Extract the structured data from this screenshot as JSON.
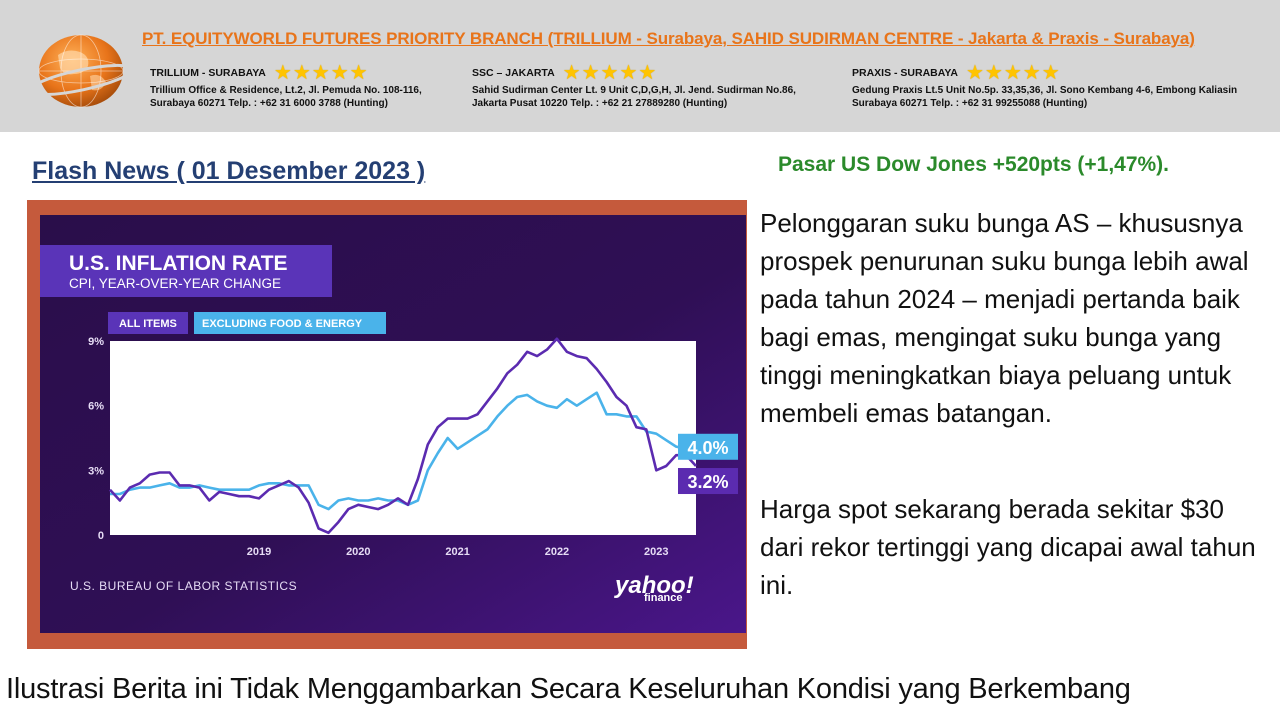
{
  "header": {
    "company": "PT. EQUITYWORLD FUTURES PRIORITY BRANCH  (TRILLIUM - Surabaya, SAHID SUDIRMAN CENTRE - Jakarta &  Praxis - Surabaya)",
    "branches": [
      {
        "name": "TRILLIUM - SURABAYA",
        "stars": "★★★★★",
        "address_line1": "Trillium Office & Residence, Lt.2, Jl. Pemuda No. 108-116,",
        "address_line2": "Surabaya 60271  Telp.   : +62 31 6000 3788 (Hunting)"
      },
      {
        "name": "SSC – JAKARTA",
        "stars": "★★★★★",
        "address_line1": "Sahid Sudirman Center Lt. 9 Unit C,D,G,H, Jl. Jend. Sudirman No.86,",
        "address_line2": "Jakarta Pusat 10220  Telp.   : +62 21 27889280 (Hunting)"
      },
      {
        "name": "PRAXIS - SURABAYA",
        "stars": "★★★★★",
        "address_line1": "Gedung Praxis Lt.5 Unit No.5p. 33,35,36, Jl. Sono Kembang 4-6, Embong Kaliasin",
        "address_line2": "Surabaya 60271  Telp.   : +62 31 99255088 (Hunting)"
      }
    ],
    "star_color": "#ffc400",
    "company_color": "#e8741a"
  },
  "flash_title": "Flash News  ( 01 Desember 2023 )",
  "market_headline": "Pasar US Dow Jones +520pts (+1,47%).",
  "paragraphs": [
    "Pelonggaran suku bunga AS – khususnya prospek penurunan suku bunga lebih awal pada tahun 2024 – menjadi pertanda baik bagi emas, mengingat suku bunga yang tinggi meningkatkan biaya peluang untuk membeli emas batangan.",
    "Harga spot sekarang berada sekitar $30 dari rekor tertinggi yang dicapai awal tahun ini."
  ],
  "footer_text": "Ilustrasi Berita ini Tidak Menggambarkan Secara Keseluruhan Kondisi yang Berkembang",
  "chart_data": {
    "type": "line",
    "title": "U.S. INFLATION RATE",
    "subtitle": "CPI, YEAR-OVER-YEAR CHANGE",
    "source": "U.S. BUREAU OF LABOR STATISTICS",
    "brand": "yahoo!",
    "brand_sub": "finance",
    "y_ticks": [
      "0",
      "3%",
      "6%",
      "9%"
    ],
    "ylim": [
      0,
      9
    ],
    "x_ticks": [
      "2019",
      "2020",
      "2021",
      "2022",
      "2023"
    ],
    "xlim": [
      2018.0,
      2023.9
    ],
    "end_labels": [
      "4.0%",
      "3.2%"
    ],
    "colors": {
      "background": "#2a0d4a",
      "plot_area": "#ffffff",
      "all_items": "#5b2bb0",
      "core": "#4ab3ea"
    },
    "series": [
      {
        "name": "ALL ITEMS",
        "x": [
          2018.0,
          2018.1,
          2018.2,
          2018.3,
          2018.4,
          2018.5,
          2018.6,
          2018.7,
          2018.8,
          2018.9,
          2019.0,
          2019.1,
          2019.2,
          2019.3,
          2019.4,
          2019.5,
          2019.6,
          2019.7,
          2019.8,
          2019.9,
          2020.0,
          2020.1,
          2020.2,
          2020.3,
          2020.4,
          2020.5,
          2020.6,
          2020.7,
          2020.8,
          2020.9,
          2021.0,
          2021.1,
          2021.2,
          2021.3,
          2021.4,
          2021.5,
          2021.6,
          2021.7,
          2021.8,
          2021.9,
          2022.0,
          2022.1,
          2022.2,
          2022.3,
          2022.4,
          2022.5,
          2022.6,
          2022.7,
          2022.8,
          2022.9,
          2023.0,
          2023.1,
          2023.2,
          2023.3,
          2023.4,
          2023.5,
          2023.6,
          2023.7,
          2023.8,
          2023.9
        ],
        "values": [
          2.1,
          1.6,
          2.2,
          2.4,
          2.8,
          2.9,
          2.9,
          2.3,
          2.3,
          2.2,
          1.6,
          2.0,
          1.9,
          1.8,
          1.8,
          1.7,
          2.1,
          2.3,
          2.5,
          2.2,
          1.5,
          0.3,
          0.1,
          0.6,
          1.2,
          1.4,
          1.3,
          1.2,
          1.4,
          1.7,
          1.4,
          2.6,
          4.2,
          5.0,
          5.4,
          5.4,
          5.4,
          5.6,
          6.2,
          6.8,
          7.5,
          7.9,
          8.5,
          8.3,
          8.6,
          9.1,
          8.5,
          8.3,
          8.2,
          7.7,
          7.1,
          6.4,
          6.0,
          5.0,
          4.9,
          3.0,
          3.2,
          3.7,
          3.7,
          3.2
        ]
      },
      {
        "name": "EXCLUDING FOOD & ENERGY",
        "x": [
          2018.0,
          2018.1,
          2018.2,
          2018.3,
          2018.4,
          2018.5,
          2018.6,
          2018.7,
          2018.8,
          2018.9,
          2019.0,
          2019.1,
          2019.2,
          2019.3,
          2019.4,
          2019.5,
          2019.6,
          2019.7,
          2019.8,
          2019.9,
          2020.0,
          2020.1,
          2020.2,
          2020.3,
          2020.4,
          2020.5,
          2020.6,
          2020.7,
          2020.8,
          2020.9,
          2021.0,
          2021.1,
          2021.2,
          2021.3,
          2021.4,
          2021.5,
          2021.6,
          2021.7,
          2021.8,
          2021.9,
          2022.0,
          2022.1,
          2022.2,
          2022.3,
          2022.4,
          2022.5,
          2022.6,
          2022.7,
          2022.8,
          2022.9,
          2023.0,
          2023.1,
          2023.2,
          2023.3,
          2023.4,
          2023.5,
          2023.6,
          2023.7,
          2023.8,
          2023.9
        ],
        "values": [
          1.9,
          1.9,
          2.1,
          2.2,
          2.2,
          2.3,
          2.4,
          2.2,
          2.2,
          2.3,
          2.2,
          2.1,
          2.1,
          2.1,
          2.1,
          2.3,
          2.4,
          2.4,
          2.3,
          2.3,
          2.3,
          1.4,
          1.2,
          1.6,
          1.7,
          1.6,
          1.6,
          1.7,
          1.6,
          1.6,
          1.4,
          1.6,
          3.0,
          3.8,
          4.5,
          4.0,
          4.3,
          4.6,
          4.9,
          5.5,
          6.0,
          6.4,
          6.5,
          6.2,
          6.0,
          5.9,
          6.3,
          6.0,
          6.3,
          6.6,
          5.6,
          5.6,
          5.5,
          5.5,
          4.8,
          4.7,
          4.4,
          4.1,
          4.0,
          4.0
        ]
      }
    ]
  }
}
